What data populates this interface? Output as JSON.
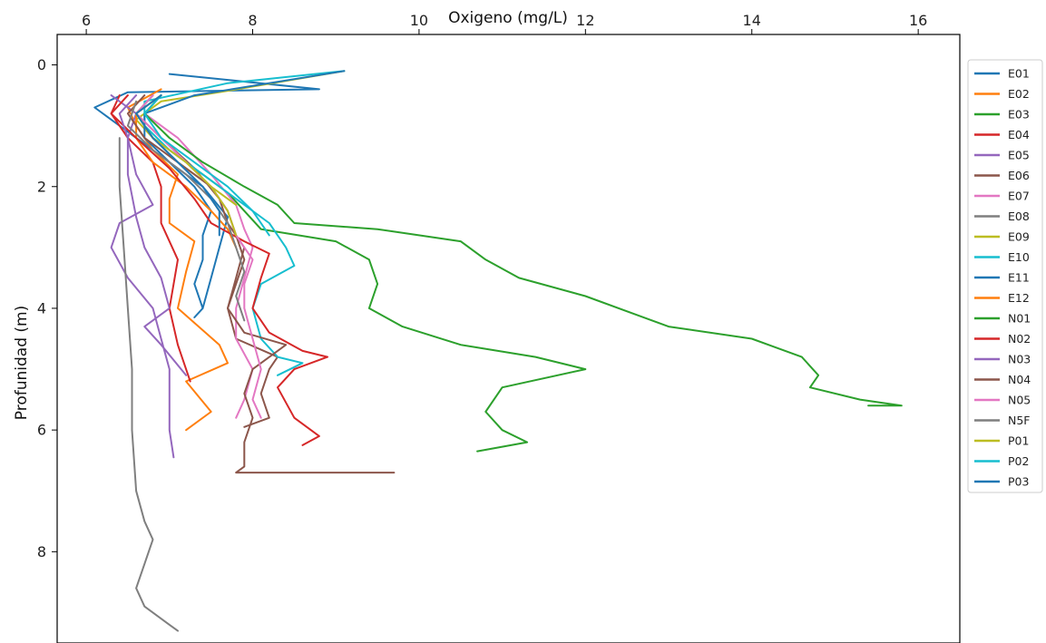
{
  "chart_data": {
    "type": "line",
    "title": "",
    "xlabel": "Oxigeno (mg/L)",
    "ylabel": "Profunidad (m)",
    "xlim": [
      5.65,
      16.5
    ],
    "ylim": [
      9.5,
      -0.5
    ],
    "x_ticks": [
      6,
      8,
      10,
      12,
      14,
      16
    ],
    "y_ticks": [
      0,
      2,
      4,
      6,
      8
    ],
    "x_axis_position": "top",
    "y_inverted": true,
    "grid": false,
    "legend_position": "outside-right",
    "series": [
      {
        "name": "E01",
        "color": "#1f77b4",
        "points": [
          [
            7.0,
            0.15
          ],
          [
            8.8,
            0.4
          ],
          [
            6.5,
            0.45
          ],
          [
            6.1,
            0.7
          ],
          [
            6.3,
            0.9
          ],
          [
            6.6,
            1.2
          ],
          [
            7.0,
            1.6
          ],
          [
            7.4,
            2.0
          ],
          [
            7.7,
            2.5
          ],
          [
            7.6,
            3.0
          ],
          [
            7.5,
            3.5
          ],
          [
            7.4,
            4.0
          ],
          [
            7.3,
            4.15
          ]
        ]
      },
      {
        "name": "E02",
        "color": "#ff7f0e",
        "points": [
          [
            6.9,
            0.4
          ],
          [
            6.5,
            0.7
          ],
          [
            6.6,
            1.0
          ],
          [
            6.8,
            1.4
          ],
          [
            7.1,
            1.8
          ],
          [
            7.0,
            2.2
          ],
          [
            7.0,
            2.6
          ],
          [
            7.3,
            2.9
          ],
          [
            7.2,
            3.4
          ],
          [
            7.1,
            4.0
          ],
          [
            7.6,
            4.6
          ],
          [
            7.7,
            4.9
          ],
          [
            7.2,
            5.2
          ],
          [
            7.5,
            5.7
          ],
          [
            7.2,
            6.0
          ]
        ]
      },
      {
        "name": "E03",
        "color": "#2ca02c",
        "points": [
          [
            6.8,
            0.5
          ],
          [
            6.6,
            0.8
          ],
          [
            6.8,
            1.2
          ],
          [
            7.3,
            1.7
          ],
          [
            7.7,
            2.1
          ],
          [
            7.9,
            2.4
          ],
          [
            8.1,
            2.7
          ],
          [
            9.0,
            2.9
          ],
          [
            9.4,
            3.2
          ],
          [
            9.5,
            3.6
          ],
          [
            9.4,
            4.0
          ],
          [
            9.8,
            4.3
          ],
          [
            10.5,
            4.6
          ],
          [
            11.4,
            4.8
          ],
          [
            12.0,
            5.0
          ],
          [
            11.0,
            5.3
          ],
          [
            10.8,
            5.7
          ],
          [
            11.0,
            6.0
          ],
          [
            11.3,
            6.2
          ],
          [
            10.7,
            6.35
          ]
        ]
      },
      {
        "name": "E04",
        "color": "#d62728",
        "points": [
          [
            6.4,
            0.5
          ],
          [
            6.3,
            0.8
          ],
          [
            6.5,
            1.2
          ],
          [
            6.8,
            1.6
          ],
          [
            6.9,
            2.0
          ],
          [
            6.9,
            2.6
          ],
          [
            7.1,
            3.2
          ],
          [
            7.0,
            4.0
          ],
          [
            7.1,
            4.6
          ],
          [
            7.2,
            5.0
          ],
          [
            7.25,
            5.2
          ]
        ]
      },
      {
        "name": "E05",
        "color": "#9467bd",
        "points": [
          [
            6.3,
            0.5
          ],
          [
            6.6,
            0.8
          ],
          [
            6.5,
            1.2
          ],
          [
            6.6,
            1.8
          ],
          [
            6.8,
            2.3
          ],
          [
            6.4,
            2.6
          ],
          [
            6.3,
            3.0
          ],
          [
            6.5,
            3.5
          ],
          [
            6.8,
            4.0
          ],
          [
            6.9,
            4.5
          ],
          [
            7.0,
            5.0
          ],
          [
            7.0,
            5.6
          ],
          [
            7.0,
            6.0
          ],
          [
            7.05,
            6.45
          ]
        ]
      },
      {
        "name": "E06",
        "color": "#8c564b",
        "points": [
          [
            6.8,
            0.5
          ],
          [
            6.6,
            0.8
          ],
          [
            6.9,
            1.2
          ],
          [
            7.3,
            1.7
          ],
          [
            7.6,
            2.2
          ],
          [
            7.7,
            2.6
          ],
          [
            7.9,
            3.0
          ],
          [
            7.8,
            3.5
          ],
          [
            7.7,
            4.0
          ],
          [
            7.8,
            4.5
          ],
          [
            8.3,
            4.8
          ],
          [
            8.2,
            5.0
          ],
          [
            8.1,
            5.4
          ],
          [
            8.2,
            5.8
          ],
          [
            7.9,
            5.95
          ]
        ]
      },
      {
        "name": "E07",
        "color": "#e377c2",
        "points": [
          [
            6.9,
            0.5
          ],
          [
            6.7,
            0.8
          ],
          [
            7.1,
            1.2
          ],
          [
            7.5,
            1.8
          ],
          [
            7.8,
            2.3
          ],
          [
            7.9,
            2.7
          ],
          [
            8.0,
            3.0
          ],
          [
            7.9,
            3.5
          ],
          [
            7.8,
            4.0
          ],
          [
            7.8,
            4.5
          ],
          [
            8.0,
            5.0
          ],
          [
            7.9,
            5.5
          ],
          [
            7.8,
            5.8
          ]
        ]
      },
      {
        "name": "E08",
        "color": "#7f7f7f",
        "points": [
          [
            6.4,
            1.2
          ],
          [
            6.4,
            2.0
          ],
          [
            6.45,
            3.0
          ],
          [
            6.5,
            4.0
          ],
          [
            6.55,
            5.0
          ],
          [
            6.55,
            6.0
          ],
          [
            6.6,
            7.0
          ],
          [
            6.7,
            7.5
          ],
          [
            6.8,
            7.8
          ],
          [
            6.7,
            8.2
          ],
          [
            6.6,
            8.6
          ],
          [
            6.7,
            8.9
          ],
          [
            7.0,
            9.2
          ],
          [
            7.1,
            9.3
          ]
        ]
      },
      {
        "name": "E09",
        "color": "#bcbd22",
        "points": [
          [
            9.1,
            0.1
          ],
          [
            7.6,
            0.45
          ],
          [
            6.9,
            0.6
          ],
          [
            6.6,
            0.9
          ],
          [
            6.8,
            1.2
          ],
          [
            7.1,
            1.6
          ],
          [
            7.5,
            2.0
          ],
          [
            7.8,
            2.3
          ]
        ]
      },
      {
        "name": "E10",
        "color": "#17becf",
        "points": [
          [
            9.1,
            0.1
          ],
          [
            7.7,
            0.3
          ],
          [
            6.7,
            0.6
          ],
          [
            6.7,
            1.0
          ],
          [
            7.0,
            1.4
          ],
          [
            7.4,
            1.8
          ],
          [
            7.8,
            2.2
          ],
          [
            8.2,
            2.6
          ],
          [
            8.4,
            3.0
          ],
          [
            8.5,
            3.3
          ],
          [
            8.1,
            3.6
          ],
          [
            8.0,
            4.0
          ],
          [
            8.1,
            4.5
          ],
          [
            8.3,
            4.8
          ],
          [
            8.6,
            4.9
          ],
          [
            8.3,
            5.1
          ]
        ]
      },
      {
        "name": "E11",
        "color": "#1f77b4",
        "points": [
          [
            9.1,
            0.1
          ],
          [
            7.3,
            0.5
          ],
          [
            6.7,
            0.8
          ],
          [
            6.7,
            1.2
          ],
          [
            7.0,
            1.6
          ],
          [
            7.3,
            2.0
          ],
          [
            7.5,
            2.4
          ],
          [
            7.4,
            2.8
          ],
          [
            7.4,
            3.2
          ],
          [
            7.3,
            3.6
          ],
          [
            7.4,
            4.0
          ]
        ]
      },
      {
        "name": "E12",
        "color": "#ff7f0e",
        "points": [
          [
            6.9,
            0.5
          ],
          [
            6.6,
            0.8
          ],
          [
            6.6,
            1.2
          ],
          [
            6.8,
            1.6
          ],
          [
            7.2,
            2.0
          ],
          [
            7.5,
            2.4
          ],
          [
            7.7,
            2.7
          ],
          [
            7.8,
            3.0
          ]
        ]
      },
      {
        "name": "N01",
        "color": "#2ca02c",
        "points": [
          [
            6.9,
            0.5
          ],
          [
            6.7,
            0.8
          ],
          [
            7.0,
            1.2
          ],
          [
            7.4,
            1.6
          ],
          [
            7.9,
            2.0
          ],
          [
            8.3,
            2.3
          ],
          [
            8.5,
            2.6
          ],
          [
            9.5,
            2.7
          ],
          [
            10.5,
            2.9
          ],
          [
            10.8,
            3.2
          ],
          [
            11.2,
            3.5
          ],
          [
            12.0,
            3.8
          ],
          [
            12.6,
            4.1
          ],
          [
            13.0,
            4.3
          ],
          [
            14.0,
            4.5
          ],
          [
            14.6,
            4.8
          ],
          [
            14.8,
            5.1
          ],
          [
            14.7,
            5.3
          ],
          [
            15.3,
            5.5
          ],
          [
            15.8,
            5.6
          ],
          [
            15.4,
            5.6
          ]
        ]
      },
      {
        "name": "N02",
        "color": "#d62728",
        "points": [
          [
            6.5,
            0.5
          ],
          [
            6.3,
            0.8
          ],
          [
            6.6,
            1.2
          ],
          [
            7.0,
            1.7
          ],
          [
            7.3,
            2.2
          ],
          [
            7.5,
            2.6
          ],
          [
            7.9,
            2.9
          ],
          [
            8.2,
            3.1
          ],
          [
            8.1,
            3.5
          ],
          [
            8.0,
            4.0
          ],
          [
            8.2,
            4.4
          ],
          [
            8.6,
            4.7
          ],
          [
            8.9,
            4.8
          ],
          [
            8.5,
            5.0
          ],
          [
            8.3,
            5.3
          ],
          [
            8.5,
            5.8
          ],
          [
            8.8,
            6.1
          ],
          [
            8.6,
            6.25
          ]
        ]
      },
      {
        "name": "N03",
        "color": "#9467bd",
        "points": [
          [
            6.6,
            0.5
          ],
          [
            6.4,
            0.8
          ],
          [
            6.5,
            1.2
          ],
          [
            6.5,
            1.8
          ],
          [
            6.6,
            2.5
          ],
          [
            6.7,
            3.0
          ],
          [
            6.9,
            3.5
          ],
          [
            7.0,
            4.0
          ],
          [
            6.7,
            4.3
          ],
          [
            6.9,
            4.6
          ],
          [
            7.2,
            5.1
          ]
        ]
      },
      {
        "name": "N04",
        "color": "#8c564b",
        "points": [
          [
            6.7,
            0.5
          ],
          [
            6.5,
            0.8
          ],
          [
            6.7,
            1.2
          ],
          [
            7.1,
            1.6
          ],
          [
            7.5,
            2.0
          ],
          [
            7.7,
            2.4
          ],
          [
            7.8,
            2.8
          ],
          [
            7.9,
            3.2
          ],
          [
            7.8,
            3.6
          ],
          [
            7.7,
            4.0
          ],
          [
            7.9,
            4.4
          ],
          [
            8.4,
            4.6
          ],
          [
            8.0,
            5.0
          ],
          [
            7.9,
            5.4
          ],
          [
            8.0,
            5.8
          ],
          [
            7.9,
            6.2
          ],
          [
            7.9,
            6.6
          ],
          [
            7.8,
            6.7
          ],
          [
            9.7,
            6.7
          ]
        ]
      },
      {
        "name": "N05",
        "color": "#e377c2",
        "points": [
          [
            6.8,
            0.5
          ],
          [
            6.6,
            0.8
          ],
          [
            6.9,
            1.2
          ],
          [
            7.2,
            1.6
          ],
          [
            7.5,
            2.0
          ],
          [
            7.7,
            2.4
          ],
          [
            7.8,
            2.8
          ],
          [
            8.0,
            3.2
          ],
          [
            7.9,
            3.6
          ],
          [
            7.9,
            4.0
          ],
          [
            8.0,
            4.5
          ],
          [
            8.1,
            5.0
          ],
          [
            8.0,
            5.5
          ],
          [
            8.1,
            5.8
          ]
        ]
      },
      {
        "name": "N5F",
        "color": "#7f7f7f",
        "points": [
          [
            6.6,
            0.6
          ],
          [
            6.5,
            1.0
          ],
          [
            6.8,
            1.4
          ],
          [
            7.2,
            1.8
          ],
          [
            7.5,
            2.2
          ],
          [
            7.7,
            2.6
          ],
          [
            7.8,
            3.0
          ],
          [
            7.9,
            3.4
          ],
          [
            7.8,
            3.8
          ],
          [
            7.9,
            4.2
          ]
        ]
      },
      {
        "name": "P01",
        "color": "#bcbd22",
        "points": [
          [
            6.9,
            0.5
          ],
          [
            6.6,
            0.8
          ],
          [
            6.8,
            1.2
          ],
          [
            7.2,
            1.6
          ],
          [
            7.5,
            2.0
          ],
          [
            7.7,
            2.4
          ],
          [
            7.8,
            2.8
          ]
        ]
      },
      {
        "name": "P02",
        "color": "#17becf",
        "points": [
          [
            6.9,
            0.5
          ],
          [
            6.7,
            0.8
          ],
          [
            6.9,
            1.2
          ],
          [
            7.3,
            1.6
          ],
          [
            7.7,
            2.0
          ],
          [
            8.0,
            2.4
          ],
          [
            8.2,
            2.8
          ]
        ]
      },
      {
        "name": "P03",
        "color": "#1f77b4",
        "points": [
          [
            6.9,
            0.5
          ],
          [
            6.6,
            0.8
          ],
          [
            6.8,
            1.2
          ],
          [
            7.1,
            1.6
          ],
          [
            7.4,
            2.0
          ],
          [
            7.6,
            2.4
          ],
          [
            7.6,
            2.8
          ]
        ]
      }
    ]
  }
}
